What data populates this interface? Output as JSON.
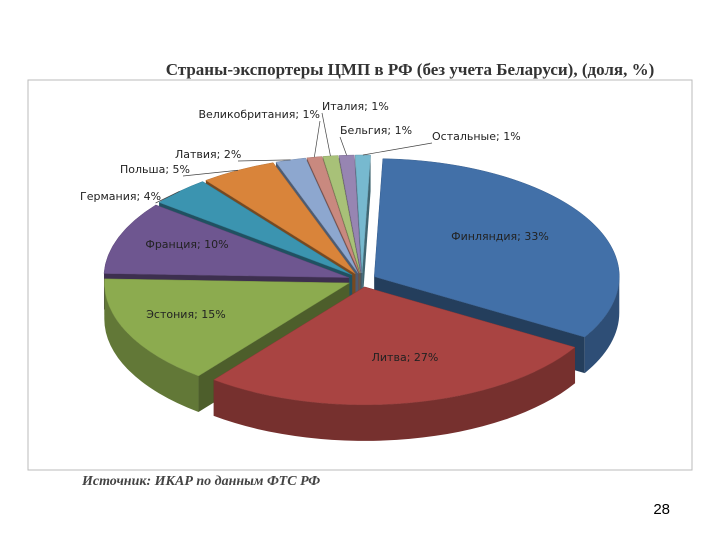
{
  "chart_data": {
    "type": "pie3d",
    "title": "Страны-экспортеры ЦМП в РФ (без учета Беларуси), (доля, %)",
    "values": [
      33,
      27,
      15,
      10,
      4,
      5,
      2,
      1,
      1,
      1,
      1
    ],
    "value_labels": [
      "Финляндия; 33%",
      "Литва; 27%",
      "Эстония; 15%",
      "Франция; 10%",
      "Германия; 4%",
      "Польша; 5%",
      "Латвия; 2%",
      "Великобритания; 1%",
      "Италия; 1%",
      "Бельгия; 1%",
      "Остальные; 1%"
    ],
    "colors": [
      "#4270a8",
      "#a94442",
      "#8cab4f",
      "#6e5690",
      "#3b94b0",
      "#d9843a",
      "#8da7cf",
      "#c9897f",
      "#a8c178",
      "#9785b2",
      "#77b9cf"
    ],
    "source": "Источник: ИКАР по данным ФТС РФ"
  },
  "page_number": "28"
}
